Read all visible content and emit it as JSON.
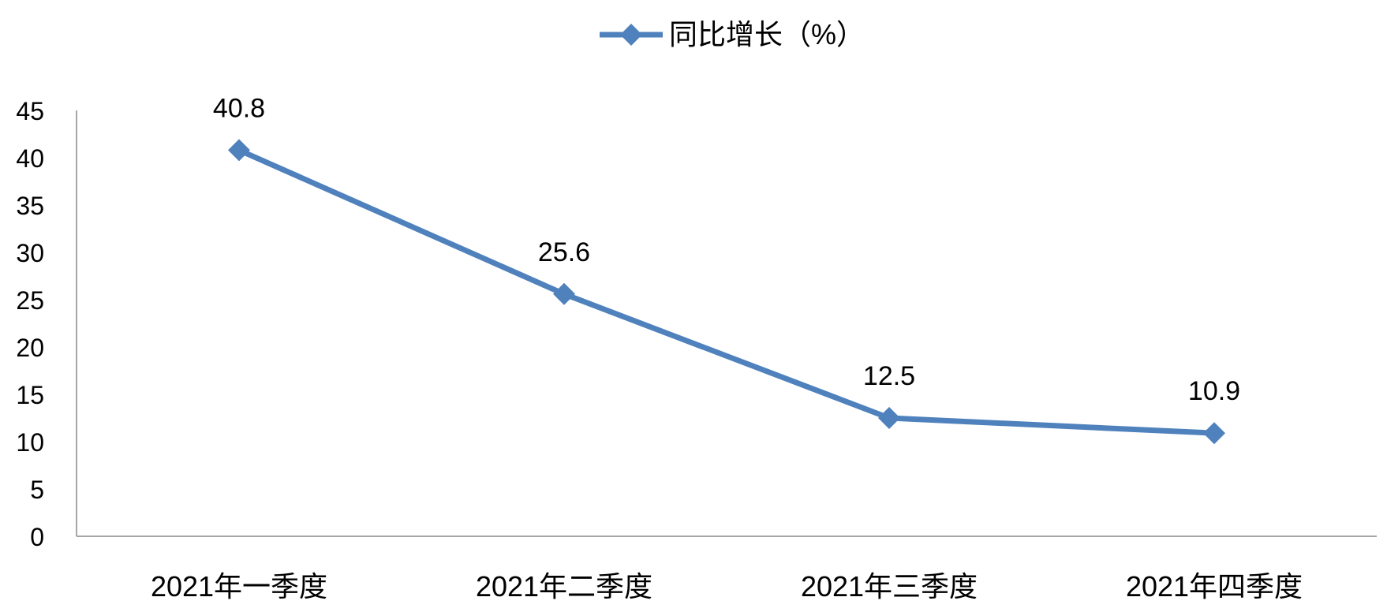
{
  "chart_data": {
    "type": "line",
    "categories": [
      "2021年一季度",
      "2021年二季度",
      "2021年三季度",
      "2021年四季度"
    ],
    "series": [
      {
        "name": "同比增长（%）",
        "values": [
          40.8,
          25.6,
          12.5,
          10.9
        ],
        "color": "#4F81BD"
      }
    ],
    "data_labels": [
      "40.8",
      "25.6",
      "12.5",
      "10.9"
    ],
    "ylim": [
      0,
      45
    ],
    "yticks": [
      0,
      5,
      10,
      15,
      20,
      25,
      30,
      35,
      40,
      45
    ],
    "ytick_labels": [
      "0",
      "5",
      "10",
      "15",
      "20",
      "25",
      "30",
      "35",
      "40",
      "45"
    ],
    "grid": false,
    "legend_position": "top-center",
    "axis_color": "#A6A6A6",
    "marker": "diamond"
  }
}
